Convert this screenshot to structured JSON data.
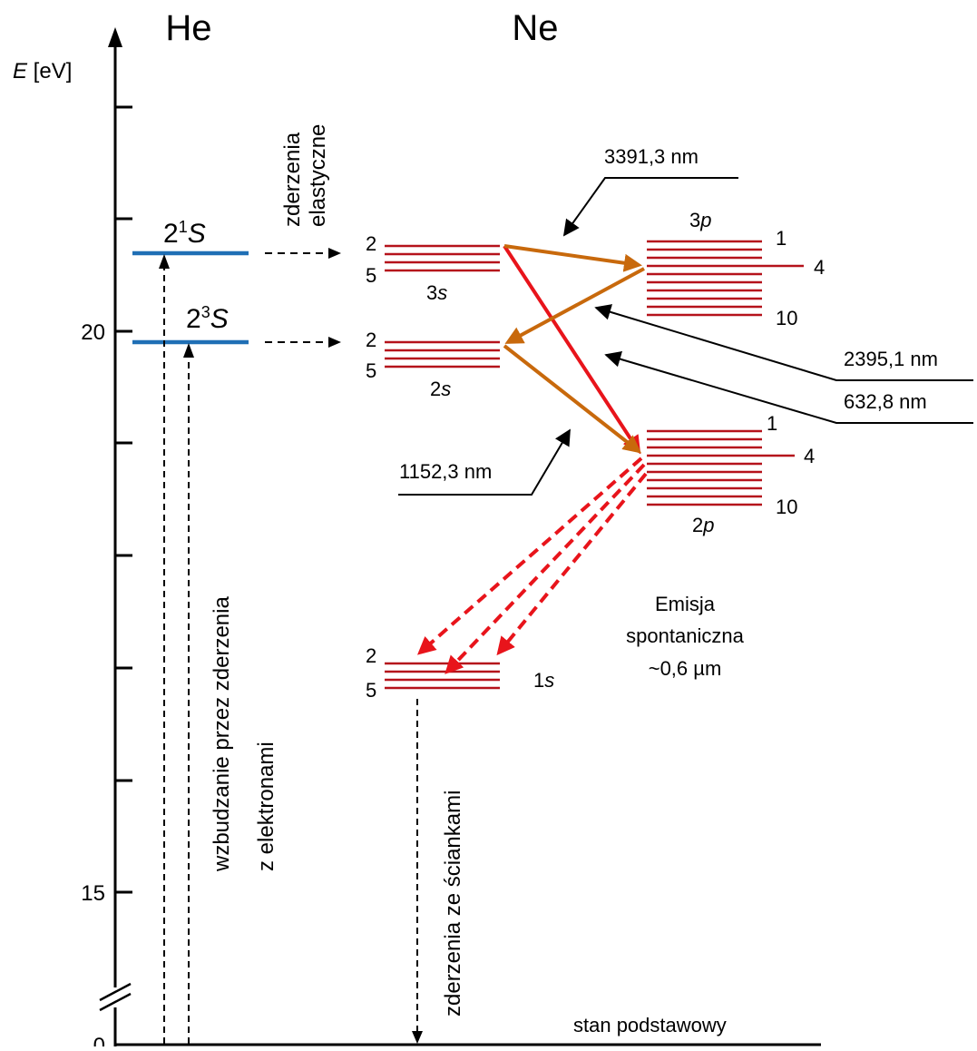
{
  "species": {
    "he": "He",
    "ne": "Ne"
  },
  "axis": {
    "label_var": "E",
    "label_unit": " [eV]",
    "tick_20": "20",
    "tick_15": "15",
    "tick_0": "0"
  },
  "he_levels": {
    "singlet": {
      "base": "2",
      "sup": "1",
      "term": "S"
    },
    "triplet": {
      "base": "2",
      "sup": "3",
      "term": "S"
    }
  },
  "ne_levels": {
    "s3": {
      "top": "2",
      "bottom": "5",
      "name_num": "3",
      "name_sub": "s"
    },
    "s2": {
      "top": "2",
      "bottom": "5",
      "name_num": "2",
      "name_sub": "s"
    },
    "s1": {
      "top": "2",
      "bottom": "5",
      "name_num": "1",
      "name_sub": "s"
    },
    "p3": {
      "top": "1",
      "mid": "4",
      "bottom": "10",
      "name_num": "3",
      "name_sub": "p"
    },
    "p2": {
      "top": "1",
      "mid": "4",
      "bottom": "10",
      "name_num": "2",
      "name_sub": "p"
    }
  },
  "labels": {
    "elastic_line1": "zderzenia",
    "elastic_line2": "elastyczne",
    "excitation_line1": "wzbudzanie przez zderzenia",
    "excitation_line2": "z elektronami",
    "wall_collisions": "zderzenia ze ściankami",
    "ground_state": "stan podstawowy",
    "spont_line1": "Emisja",
    "spont_line2": "spontaniczna",
    "spont_line3": "~0,6 µm"
  },
  "wavelengths": {
    "w3391": "3391,3 nm",
    "w2395": "2395,1 nm",
    "w632": "632,8 nm",
    "w1152": "1152,3 nm"
  },
  "colors": {
    "he_level": "#1f6fb5",
    "ne_level": "#b5121b",
    "laser_red": "#e8141b",
    "laser_orange": "#c8690c",
    "axis": "#000000"
  }
}
